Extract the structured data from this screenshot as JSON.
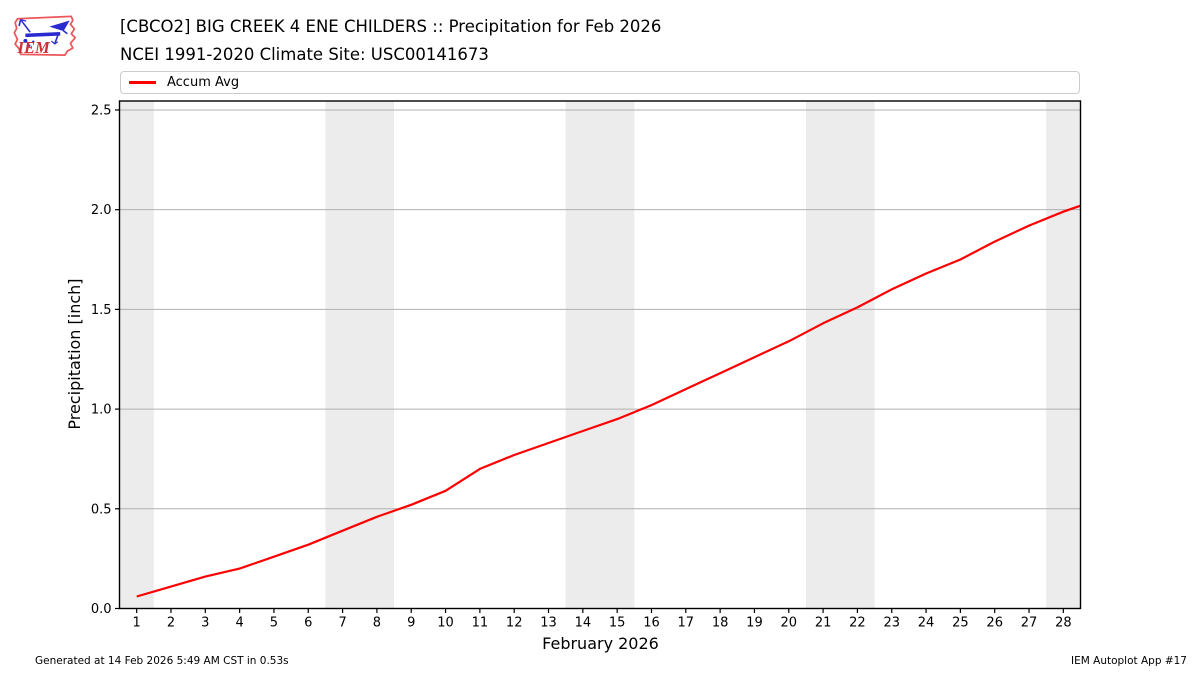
{
  "header": {
    "title_line1": "[CBCO2] BIG CREEK 4 ENE CHILDERS :: Precipitation for Feb 2026",
    "title_line2": "NCEI 1991-2020 Climate Site: USC00141673",
    "logo_text": "IEM"
  },
  "legend": {
    "items": [
      {
        "label": "Accum Avg",
        "color": "#ff0000"
      }
    ]
  },
  "footer": {
    "generated": "Generated at 14 Feb 2026 5:49 AM CST in 0.53s",
    "app": "IEM Autoplot App #17"
  },
  "chart_data": {
    "type": "line",
    "title": "[CBCO2] BIG CREEK 4 ENE CHILDERS :: Precipitation for Feb 2026",
    "subtitle": "NCEI 1991-2020 Climate Site: USC00141673",
    "xlabel": "February 2026",
    "ylabel": "Precipitation [inch]",
    "xlim": [
      0.5,
      28.5
    ],
    "ylim": [
      0,
      2.545
    ],
    "x_ticks": [
      1,
      2,
      3,
      4,
      5,
      6,
      7,
      8,
      9,
      10,
      11,
      12,
      13,
      14,
      15,
      16,
      17,
      18,
      19,
      20,
      21,
      22,
      23,
      24,
      25,
      26,
      27,
      28
    ],
    "y_ticks": [
      0.0,
      0.5,
      1.0,
      1.5,
      2.0,
      2.5
    ],
    "grid": true,
    "legend_position": "top",
    "weekend_bands": [
      [
        0.5,
        1.5
      ],
      [
        6.5,
        8.5
      ],
      [
        13.5,
        15.5
      ],
      [
        20.5,
        22.5
      ],
      [
        27.5,
        28.5
      ]
    ],
    "colors": {
      "line": "#ff0000",
      "grid": "#b0b0b0",
      "band": "#ececec",
      "spine": "#000000"
    },
    "series": [
      {
        "name": "Accum Avg",
        "color": "#ff0000",
        "x": [
          1,
          2,
          3,
          4,
          5,
          6,
          7,
          8,
          9,
          10,
          11,
          12,
          13,
          14,
          15,
          16,
          17,
          18,
          19,
          20,
          21,
          22,
          23,
          24,
          25,
          26,
          27,
          28,
          28.5
        ],
        "values": [
          0.06,
          0.11,
          0.16,
          0.2,
          0.26,
          0.32,
          0.39,
          0.46,
          0.52,
          0.59,
          0.7,
          0.77,
          0.83,
          0.89,
          0.95,
          1.02,
          1.1,
          1.18,
          1.26,
          1.34,
          1.43,
          1.51,
          1.6,
          1.68,
          1.75,
          1.84,
          1.92,
          1.99,
          2.02
        ]
      }
    ]
  }
}
